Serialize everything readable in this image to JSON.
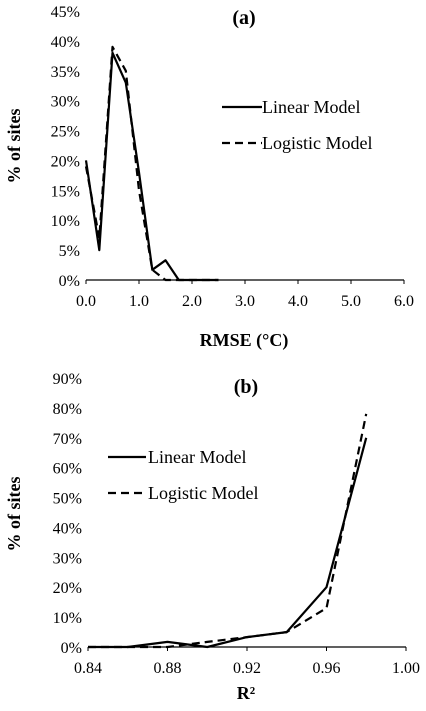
{
  "chart_data": [
    {
      "type": "line",
      "panel_label": "(a)",
      "xlabel": "RMSE (°C)",
      "ylabel": "% of sites",
      "xlim": [
        0,
        6
      ],
      "ylim": [
        0,
        45
      ],
      "x_ticks": [
        "0.0",
        "1.0",
        "2.0",
        "3.0",
        "4.0",
        "5.0",
        "6.0"
      ],
      "y_ticks": [
        "0%",
        "5%",
        "10%",
        "15%",
        "20%",
        "25%",
        "30%",
        "35%",
        "40%",
        "45%"
      ],
      "legend_position": "right",
      "series": [
        {
          "name": "Linear Model",
          "style": "solid",
          "x": [
            0.0,
            0.25,
            0.5,
            0.75,
            1.0,
            1.25,
            1.5,
            1.75,
            2.0,
            2.25,
            2.5
          ],
          "y": [
            20,
            5,
            38,
            33,
            18,
            1.7,
            3.3,
            0,
            0,
            0,
            0
          ]
        },
        {
          "name": "Logistic Model",
          "style": "dashed",
          "x": [
            0.0,
            0.25,
            0.5,
            0.75,
            1.0,
            1.25,
            1.5,
            1.75,
            2.0,
            2.25,
            2.5
          ],
          "y": [
            19,
            7,
            39,
            35,
            15,
            1.7,
            0,
            0,
            0,
            0,
            0
          ]
        }
      ]
    },
    {
      "type": "line",
      "panel_label": "(b)",
      "xlabel": "R²",
      "ylabel": "% of sites",
      "xlim": [
        0.84,
        1.0
      ],
      "ylim": [
        0,
        90
      ],
      "x_ticks": [
        "0.84",
        "0.88",
        "0.92",
        "0.96",
        "1.00"
      ],
      "y_ticks": [
        "0%",
        "10%",
        "20%",
        "30%",
        "40%",
        "50%",
        "60%",
        "70%",
        "80%",
        "90%"
      ],
      "legend_position": "left",
      "series": [
        {
          "name": "Linear Model",
          "style": "solid",
          "x": [
            0.84,
            0.86,
            0.88,
            0.9,
            0.92,
            0.94,
            0.96,
            0.98
          ],
          "y": [
            0,
            0,
            1.7,
            0,
            3.3,
            5,
            20,
            70
          ]
        },
        {
          "name": "Logistic Model",
          "style": "dashed",
          "x": [
            0.84,
            0.86,
            0.88,
            0.9,
            0.92,
            0.94,
            0.96,
            0.98
          ],
          "y": [
            0,
            0,
            0,
            1.7,
            3.3,
            5,
            13,
            78
          ]
        }
      ]
    }
  ]
}
